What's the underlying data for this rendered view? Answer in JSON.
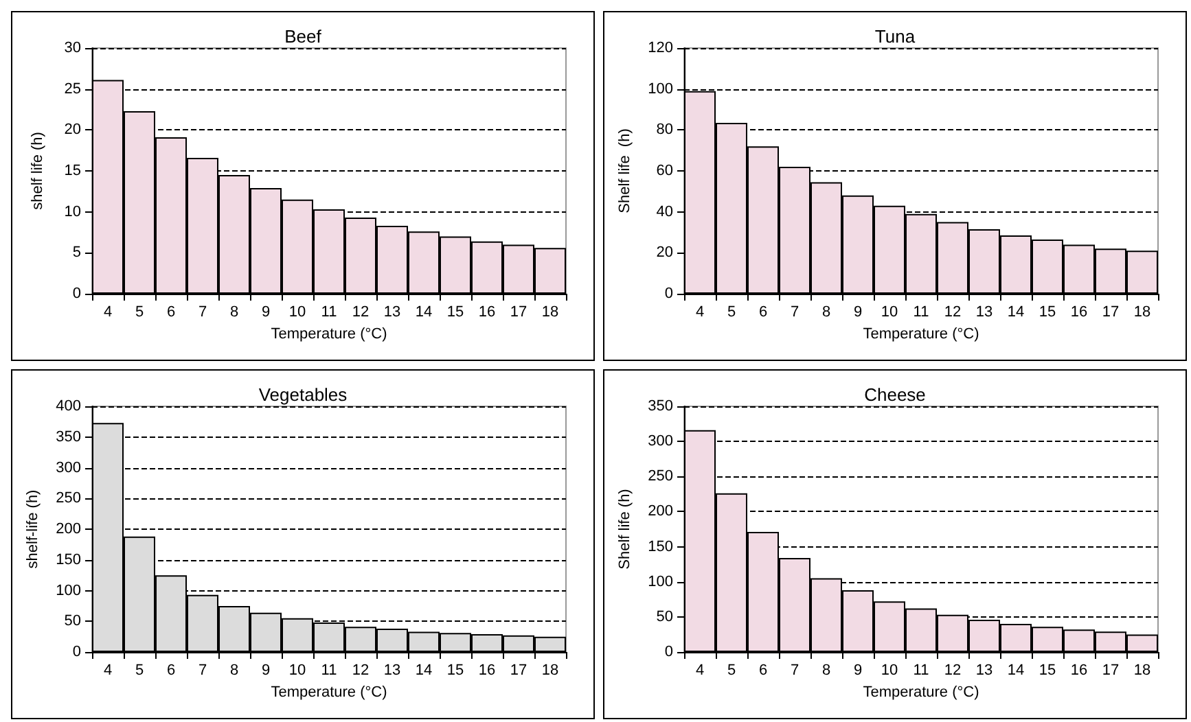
{
  "chart_data": [
    {
      "type": "bar",
      "title": "Beef",
      "xlabel": "Temperature (°C)",
      "ylabel": "shelf life (h)",
      "categories": [
        "4",
        "5",
        "6",
        "7",
        "8",
        "9",
        "10",
        "11",
        "12",
        "13",
        "14",
        "15",
        "16",
        "17",
        "18"
      ],
      "values": [
        26.1,
        22.3,
        19.1,
        16.6,
        14.5,
        12.9,
        11.5,
        10.3,
        9.3,
        8.3,
        7.6,
        7.0,
        6.4,
        6.0,
        5.6
      ],
      "color": "#f2dbe4",
      "ylim": [
        0,
        30
      ],
      "yticks": [
        0,
        5,
        10,
        15,
        20,
        25,
        30
      ],
      "grid": "y"
    },
    {
      "type": "bar",
      "title": "Tuna",
      "xlabel": "Temperature (°C)",
      "ylabel": "Shelf life  (h)",
      "categories": [
        "4",
        "5",
        "6",
        "7",
        "8",
        "9",
        "10",
        "11",
        "12",
        "13",
        "14",
        "15",
        "16",
        "17",
        "18"
      ],
      "values": [
        99,
        83.5,
        72,
        62,
        54.5,
        48,
        43,
        39,
        35,
        31.5,
        28.5,
        26.5,
        24,
        22,
        21
      ],
      "color": "#f2dbe4",
      "ylim": [
        0,
        120
      ],
      "yticks": [
        0,
        20,
        40,
        60,
        80,
        100,
        120
      ],
      "grid": "y"
    },
    {
      "type": "bar",
      "title": "Vegetables",
      "xlabel": "Temperature (°C)",
      "ylabel": "shelf-life (h)",
      "categories": [
        "4",
        "5",
        "6",
        "7",
        "8",
        "9",
        "10",
        "11",
        "12",
        "13",
        "14",
        "15",
        "16",
        "17",
        "18"
      ],
      "values": [
        373,
        188,
        125,
        93,
        75,
        64,
        55,
        48,
        41,
        38,
        33,
        31,
        29,
        27,
        25
      ],
      "color": "#dcdcdc",
      "ylim": [
        0,
        400
      ],
      "yticks": [
        0,
        50,
        100,
        150,
        200,
        250,
        300,
        350,
        400
      ],
      "grid": "y"
    },
    {
      "type": "bar",
      "title": "Cheese",
      "xlabel": "Temperature (°C)",
      "ylabel": "Shelf life (h)",
      "categories": [
        "4",
        "5",
        "6",
        "7",
        "8",
        "9",
        "10",
        "11",
        "12",
        "13",
        "14",
        "15",
        "16",
        "17",
        "18"
      ],
      "values": [
        316,
        226,
        171,
        134,
        105,
        88,
        72,
        62,
        53,
        46,
        40,
        36,
        32,
        29,
        25
      ],
      "color": "#f2dbe4",
      "ylim": [
        0,
        350
      ],
      "yticks": [
        0,
        50,
        100,
        150,
        200,
        250,
        300,
        350
      ],
      "grid": "y"
    }
  ]
}
